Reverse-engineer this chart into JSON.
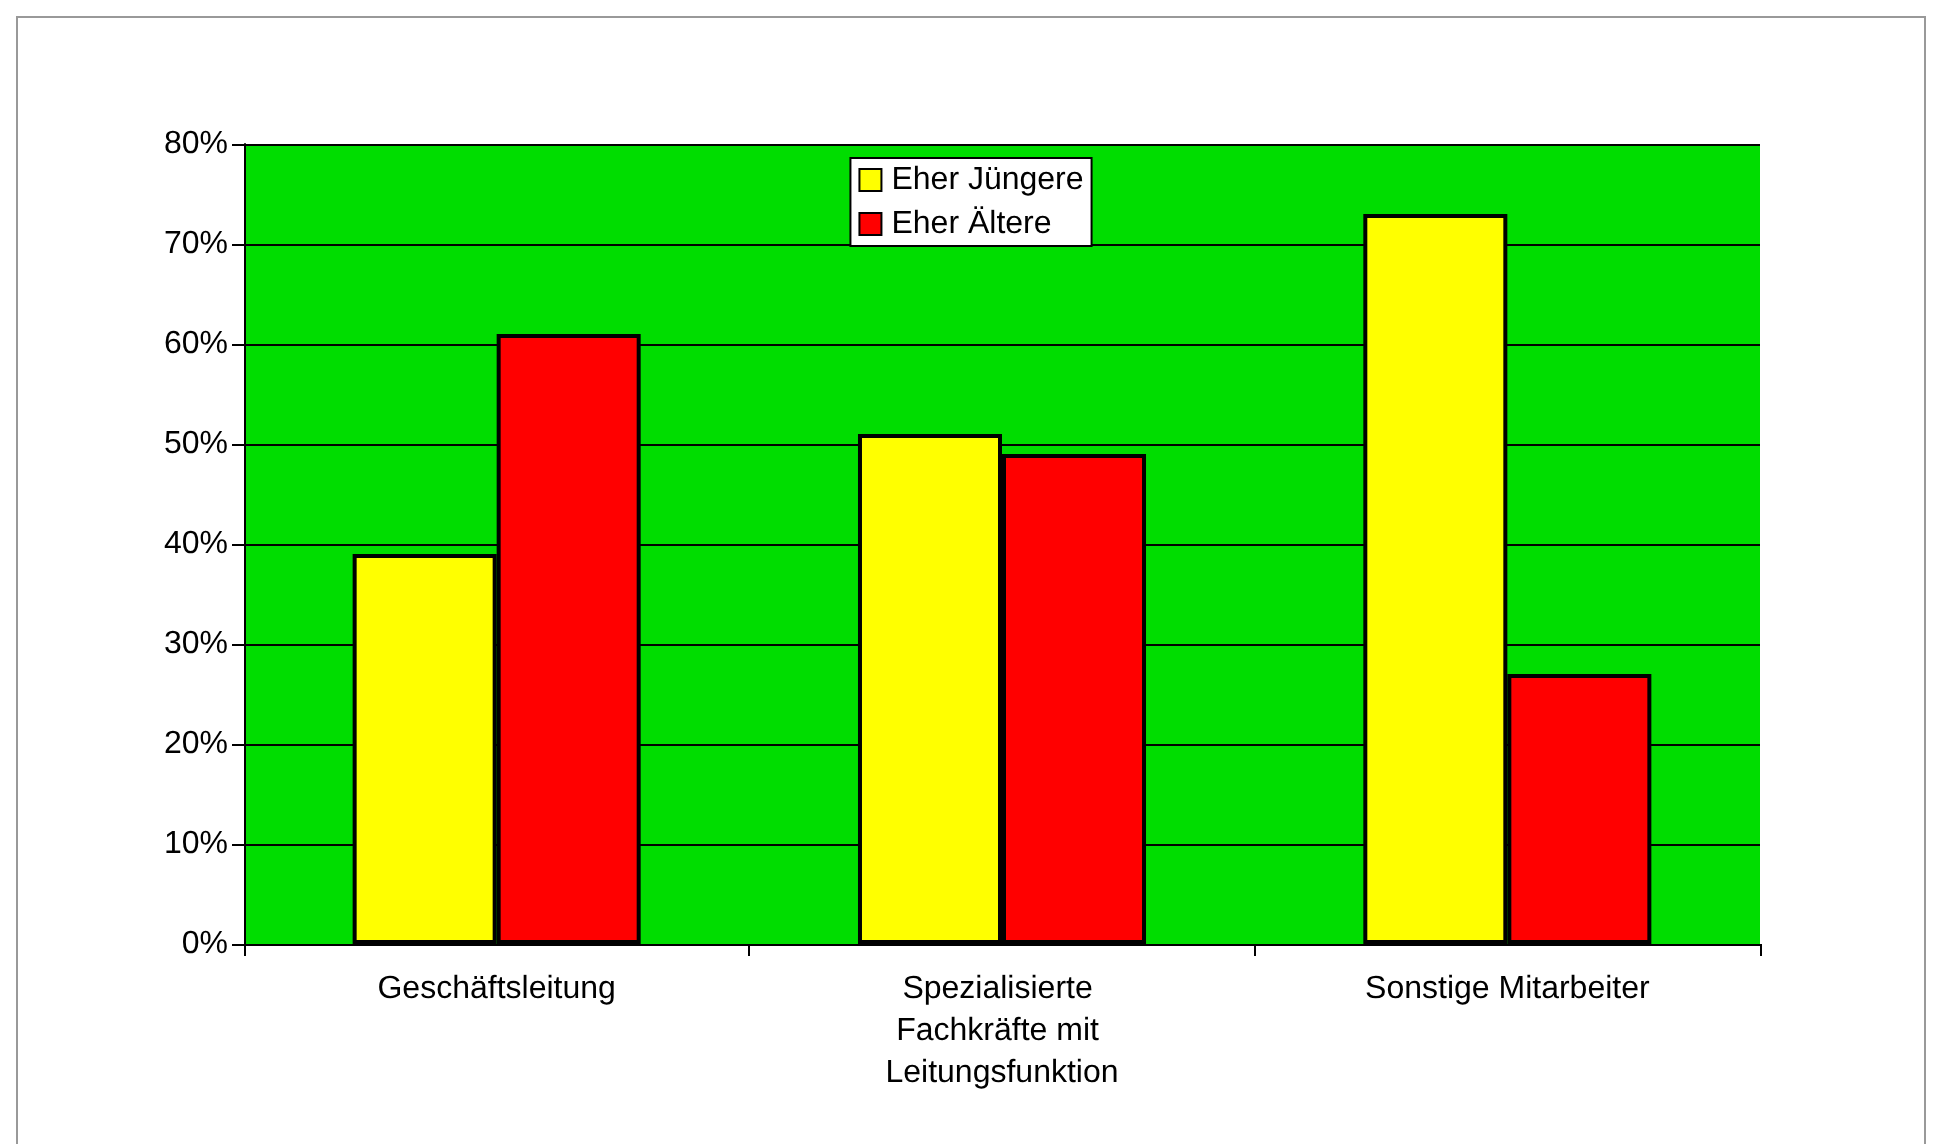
{
  "chart_data": {
    "type": "bar",
    "categories": [
      "Geschäftsleitung",
      "Spezialisierte Fachkräfte mit Leitungsfunktion",
      "Sonstige Mitarbeiter"
    ],
    "series": [
      {
        "name": "Eher Jüngere",
        "color": "#ffff00",
        "values": [
          39,
          51,
          73
        ]
      },
      {
        "name": "Eher Ältere",
        "color": "#ff0000",
        "values": [
          61,
          49,
          27
        ]
      }
    ],
    "ylim": [
      0,
      80
    ],
    "yticks": [
      {
        "value": 0,
        "label": "0%"
      },
      {
        "value": 10,
        "label": "10%"
      },
      {
        "value": 20,
        "label": "20%"
      },
      {
        "value": 30,
        "label": "30%"
      },
      {
        "value": 40,
        "label": "40%"
      },
      {
        "value": 50,
        "label": "50%"
      },
      {
        "value": 60,
        "label": "60%"
      },
      {
        "value": 70,
        "label": "70%"
      },
      {
        "value": 80,
        "label": "80%"
      }
    ],
    "grid": "y",
    "legend": "top"
  }
}
